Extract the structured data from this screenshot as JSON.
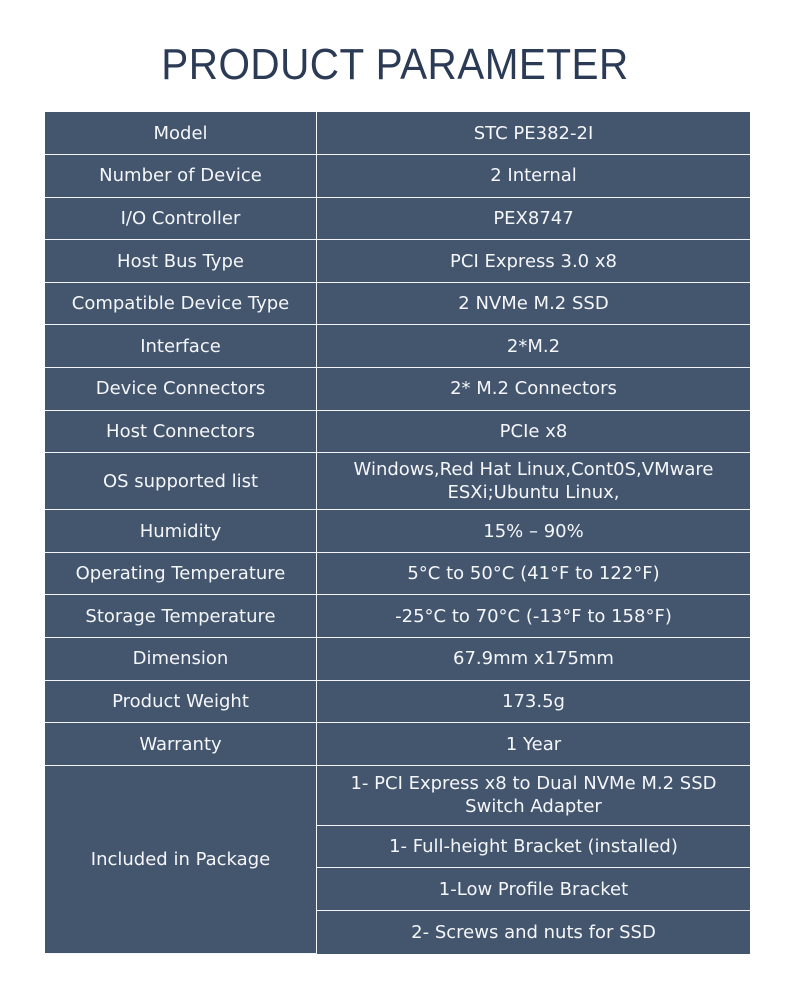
{
  "title": "PRODUCT PARAMETER",
  "rows": [
    {
      "label": "Model",
      "value": "STC PE382-2I"
    },
    {
      "label": "Number of Device",
      "value": "2 Internal"
    },
    {
      "label": "I/O Controller",
      "value": "PEX8747"
    },
    {
      "label": "Host Bus Type",
      "value": "PCI Express 3.0 x8"
    },
    {
      "label": "Compatible Device Type",
      "value": "2 NVMe M.2 SSD"
    },
    {
      "label": "Interface",
      "value": "2*M.2"
    },
    {
      "label": "Device Connectors",
      "value": "2* M.2 Connectors"
    },
    {
      "label": "Host Connectors",
      "value": "PCIe x8"
    },
    {
      "label": "OS supported list",
      "value": "Windows,Red Hat Linux,Cont0S,VMware ESXi;Ubuntu Linux,"
    },
    {
      "label": "Humidity",
      "value": "15% – 90%"
    },
    {
      "label": "Operating Temperature",
      "value": "5°C to 50°C (41°F to 122°F)"
    },
    {
      "label": "Storage Temperature",
      "value": "-25°C to 70°C (-13°F to 158°F)"
    },
    {
      "label": "Dimension",
      "value": "67.9mm x175mm"
    },
    {
      "label": "Product Weight",
      "value": "173.5g"
    },
    {
      "label": "Warranty",
      "value": "1 Year"
    }
  ],
  "package": {
    "label": "Included in Package",
    "items": [
      "1- PCI Express x8 to Dual NVMe M.2 SSD Switch Adapter",
      "1- Full-height Bracket (installed)",
      "1-Low Profile Bracket",
      "2- Screws and nuts for SSD"
    ]
  }
}
